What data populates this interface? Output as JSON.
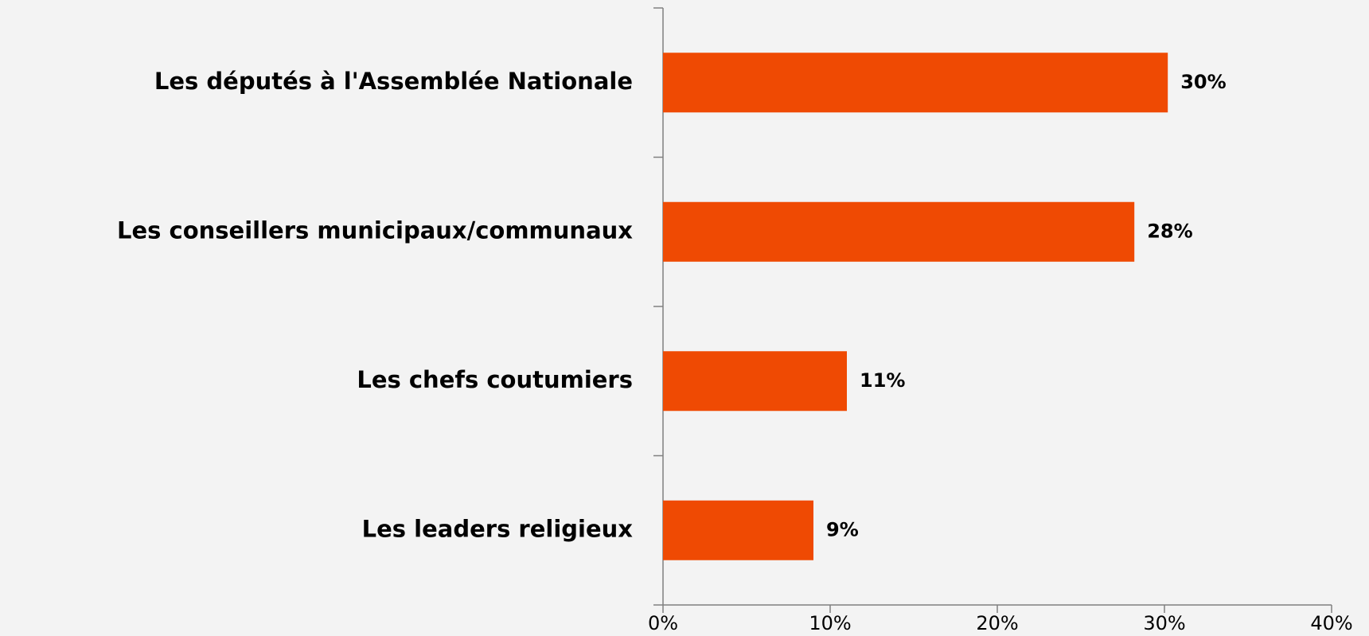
{
  "chart_data": {
    "type": "barh",
    "categories": [
      "Les députés à l'Assemblée Nationale",
      "Les conseillers municipaux/communaux",
      "Les chefs coutumiers",
      "Les leaders religieux"
    ],
    "values": [
      30.2,
      28.2,
      11,
      9
    ],
    "value_labels": [
      "30%",
      "28%",
      "11%",
      "9%"
    ],
    "color": "#ef4a03",
    "xlim": [
      0,
      40
    ],
    "xticks": [
      {
        "value": 0,
        "label": "0%"
      },
      {
        "value": 10,
        "label": "10%"
      },
      {
        "value": 20,
        "label": "20%"
      },
      {
        "value": 30,
        "label": "30%"
      },
      {
        "value": 40,
        "label": "40%"
      }
    ],
    "grid": false
  }
}
